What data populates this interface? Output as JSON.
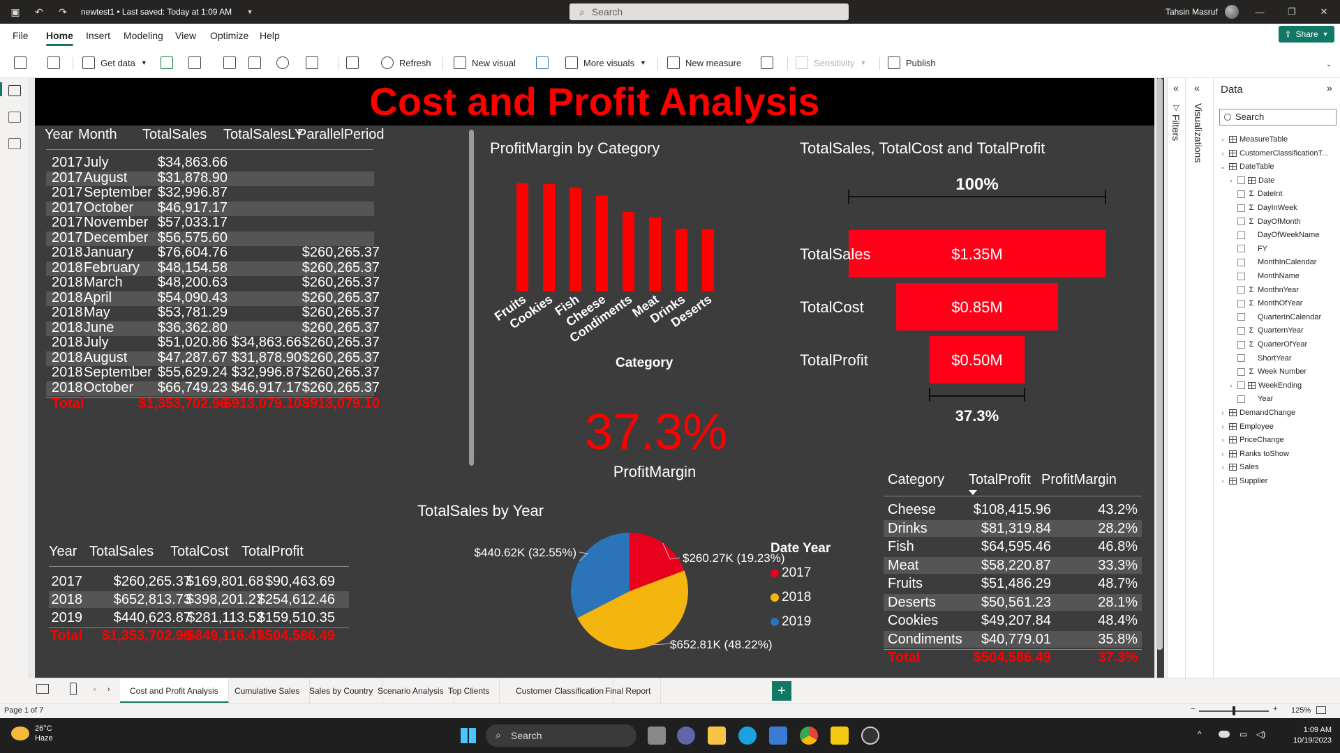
{
  "titlebar": {
    "doc_title": "newtest1 • Last saved: Today at 1:09 AM",
    "search_placeholder": "Search",
    "user_name": "Tahsin Masruf"
  },
  "ribbon": {
    "tabs": [
      "File",
      "Home",
      "Insert",
      "Modeling",
      "View",
      "Optimize",
      "Help"
    ],
    "active_tab": "Home",
    "share_label": "Share",
    "tools": {
      "get_data": "Get data",
      "refresh": "Refresh",
      "new_visual": "New visual",
      "more_visuals": "More visuals",
      "new_measure": "New measure",
      "sensitivity": "Sensitivity",
      "publish": "Publish"
    }
  },
  "report": {
    "title": "Cost and Profit Analysis",
    "monthly_table": {
      "headers": [
        "Year",
        "Month",
        "TotalSales",
        "TotalSalesLY",
        "ParallelPeriod"
      ],
      "rows": [
        [
          "2017",
          "July",
          "$34,863.66",
          "",
          ""
        ],
        [
          "2017",
          "August",
          "$31,878.90",
          "",
          ""
        ],
        [
          "2017",
          "September",
          "$32,996.87",
          "",
          ""
        ],
        [
          "2017",
          "October",
          "$46,917.17",
          "",
          ""
        ],
        [
          "2017",
          "November",
          "$57,033.17",
          "",
          ""
        ],
        [
          "2017",
          "December",
          "$56,575.60",
          "",
          ""
        ],
        [
          "2018",
          "January",
          "$76,604.76",
          "",
          "$260,265.37"
        ],
        [
          "2018",
          "February",
          "$48,154.58",
          "",
          "$260,265.37"
        ],
        [
          "2018",
          "March",
          "$48,200.63",
          "",
          "$260,265.37"
        ],
        [
          "2018",
          "April",
          "$54,090.43",
          "",
          "$260,265.37"
        ],
        [
          "2018",
          "May",
          "$53,781.29",
          "",
          "$260,265.37"
        ],
        [
          "2018",
          "June",
          "$36,362.80",
          "",
          "$260,265.37"
        ],
        [
          "2018",
          "July",
          "$51,020.86",
          "$34,863.66",
          "$260,265.37"
        ],
        [
          "2018",
          "August",
          "$47,287.67",
          "$31,878.90",
          "$260,265.37"
        ],
        [
          "2018",
          "September",
          "$55,629.24",
          "$32,996.87",
          "$260,265.37"
        ],
        [
          "2018",
          "October",
          "$66,749.23",
          "$46,917.17",
          "$260,265.37"
        ]
      ],
      "total": [
        "Total",
        "$1,353,702.96",
        "$913,079.10",
        "$913,079.10"
      ]
    },
    "profit_margin_chart": {
      "title": "ProfitMargin by Category",
      "xlabel": "Category"
    },
    "funnel": {
      "title": "TotalSales, TotalCost and TotalProfit",
      "top_pct": "100%",
      "bottom_pct": "37.3%",
      "stages": [
        {
          "label": "TotalSales",
          "value_label": "$1.35M",
          "value": 1.35
        },
        {
          "label": "TotalCost",
          "value_label": "$0.85M",
          "value": 0.85
        },
        {
          "label": "TotalProfit",
          "value_label": "$0.50M",
          "value": 0.5
        }
      ]
    },
    "kpi": {
      "value": "37.3%",
      "label": "ProfitMargin"
    },
    "pie": {
      "title": "TotalSales by Year",
      "legend_title": "Date Year",
      "slices": [
        {
          "year": "2017",
          "label": "$260.27K (19.23%)",
          "pct": 19.23,
          "color": "#e8001c"
        },
        {
          "year": "2018",
          "label": "$652.81K (48.22%)",
          "pct": 48.22,
          "color": "#f5b50f"
        },
        {
          "year": "2019",
          "label": "$440.62K (32.55%)",
          "pct": 32.55,
          "color": "#2b74b8"
        }
      ]
    },
    "year_table": {
      "headers": [
        "Year",
        "TotalSales",
        "TotalCost",
        "TotalProfit"
      ],
      "rows": [
        [
          "2017",
          "$260,265.37",
          "$169,801.68",
          "$90,463.69"
        ],
        [
          "2018",
          "$652,813.73",
          "$398,201.27",
          "$254,612.46"
        ],
        [
          "2019",
          "$440,623.87",
          "$281,113.52",
          "$159,510.35"
        ]
      ],
      "total": [
        "Total",
        "$1,353,702.96",
        "$849,116.47",
        "$504,586.49"
      ]
    },
    "category_table": {
      "headers": [
        "Category",
        "TotalProfit",
        "ProfitMargin"
      ],
      "rows": [
        [
          "Cheese",
          "$108,415.96",
          "43.2%"
        ],
        [
          "Drinks",
          "$81,319.84",
          "28.2%"
        ],
        [
          "Fish",
          "$64,595.46",
          "46.8%"
        ],
        [
          "Meat",
          "$58,220.87",
          "33.3%"
        ],
        [
          "Fruits",
          "$51,486.29",
          "48.7%"
        ],
        [
          "Deserts",
          "$50,561.23",
          "28.1%"
        ],
        [
          "Cookies",
          "$49,207.84",
          "48.4%"
        ],
        [
          "Condiments",
          "$40,779.01",
          "35.8%"
        ]
      ],
      "total": [
        "Total",
        "$504,586.49",
        "37.3%"
      ]
    }
  },
  "chart_data": {
    "type": "bar",
    "title": "ProfitMargin by Category",
    "xlabel": "Category",
    "ylabel": "",
    "categories": [
      "Fruits",
      "Cookies",
      "Fish",
      "Cheese",
      "Condiments",
      "Meat",
      "Drinks",
      "Deserts"
    ],
    "values": [
      48.7,
      48.4,
      46.8,
      43.2,
      35.8,
      33.3,
      28.2,
      28.1
    ],
    "ylim": [
      0,
      50
    ],
    "color": "#ff0000"
  },
  "panes": {
    "filters_label": "Filters",
    "visualizations_label": "Visualizations",
    "data_title": "Data",
    "data_search_placeholder": "Search",
    "data_items": [
      {
        "label": "MeasureTable",
        "kind": "table",
        "level": 0,
        "expander": "›"
      },
      {
        "label": "CustomerClassificationT...",
        "kind": "table",
        "level": 0,
        "expander": "›"
      },
      {
        "label": "DateTable",
        "kind": "table",
        "level": 0,
        "expander": "⌄"
      },
      {
        "label": "Date",
        "kind": "hier",
        "level": 1,
        "expander": "›"
      },
      {
        "label": "DateInt",
        "kind": "sum",
        "level": 1
      },
      {
        "label": "DayInWeek",
        "kind": "sum",
        "level": 1
      },
      {
        "label": "DayOfMonth",
        "kind": "sum",
        "level": 1
      },
      {
        "label": "DayOfWeekName",
        "kind": "field",
        "level": 1
      },
      {
        "label": "FY",
        "kind": "field",
        "level": 1
      },
      {
        "label": "MonthInCalendar",
        "kind": "field",
        "level": 1
      },
      {
        "label": "MonthName",
        "kind": "field",
        "level": 1
      },
      {
        "label": "MonthnYear",
        "kind": "sum",
        "level": 1
      },
      {
        "label": "MonthOfYear",
        "kind": "sum",
        "level": 1
      },
      {
        "label": "QuarterInCalendar",
        "kind": "field",
        "level": 1
      },
      {
        "label": "QuarternYear",
        "kind": "sum",
        "level": 1
      },
      {
        "label": "QuarterOfYear",
        "kind": "sum",
        "level": 1
      },
      {
        "label": "ShortYear",
        "kind": "field",
        "level": 1
      },
      {
        "label": "Week Number",
        "kind": "sum",
        "level": 1
      },
      {
        "label": "WeekEnding",
        "kind": "hier",
        "level": 1,
        "expander": "›"
      },
      {
        "label": "Year",
        "kind": "field",
        "level": 1
      },
      {
        "label": "DemandChange",
        "kind": "table",
        "level": 0,
        "expander": "›"
      },
      {
        "label": "Employee",
        "kind": "table",
        "level": 0,
        "expander": "›"
      },
      {
        "label": "PriceChange",
        "kind": "table",
        "level": 0,
        "expander": "›"
      },
      {
        "label": "Ranks toShow",
        "kind": "table",
        "level": 0,
        "expander": "›"
      },
      {
        "label": "Sales",
        "kind": "table",
        "level": 0,
        "expander": "›"
      },
      {
        "label": "Supplier",
        "kind": "table",
        "level": 0,
        "expander": "›"
      }
    ]
  },
  "page_tabs": [
    "Cost and Profit Analysis",
    "Cumulative Sales",
    "Sales by Country",
    "Scenario Analysis",
    "Top Clients",
    "Customer Classification",
    "Final Report"
  ],
  "active_page": "Cost and Profit Analysis",
  "status": {
    "page": "Page 1 of 7",
    "zoom": "125%"
  },
  "taskbar": {
    "temp": "26°C",
    "weather": "Haze",
    "search": "Search",
    "time": "1:09 AM",
    "date": "10/19/2023"
  }
}
